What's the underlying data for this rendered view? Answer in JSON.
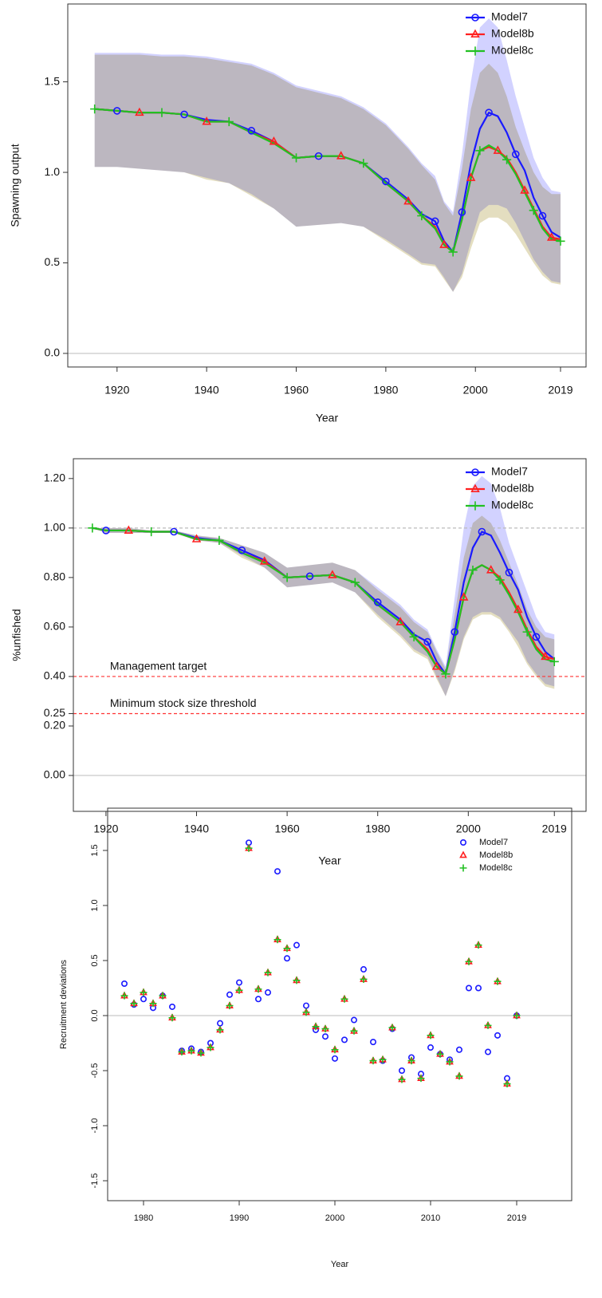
{
  "chart_data": [
    {
      "type": "line",
      "y_label": "Spawning output",
      "x_label": "Year",
      "xlim": [
        1909,
        2024.7
      ],
      "xticks": [
        1920,
        1940,
        1960,
        1980,
        2000,
        2019
      ],
      "ylim": [
        -0.075,
        1.93
      ],
      "yticks": [
        {
          "value": 0,
          "label": "0.0"
        },
        0.5,
        {
          "value": 1,
          "label": "1.0"
        },
        1.5
      ],
      "zero_line": true,
      "legend": "top-right",
      "x": [
        1915,
        1920,
        1925,
        1930,
        1935,
        1940,
        1945,
        1950,
        1955,
        1960,
        1965,
        1970,
        1975,
        1980,
        1985,
        1988,
        1991,
        1993,
        1995,
        1997,
        1999,
        2001,
        2003,
        2005,
        2007,
        2009,
        2011,
        2013,
        2015,
        2017,
        2019
      ],
      "series": [
        {
          "name": "Model7",
          "color": "#1a1aff",
          "marker": "circle",
          "band_color": "#b4b4ff",
          "values": [
            1.35,
            1.34,
            1.33,
            1.33,
            1.32,
            1.29,
            1.28,
            1.23,
            1.17,
            1.08,
            1.09,
            1.09,
            1.05,
            0.95,
            0.85,
            0.77,
            0.73,
            0.62,
            0.56,
            0.78,
            1.05,
            1.24,
            1.33,
            1.31,
            1.22,
            1.1,
            1.01,
            0.86,
            0.76,
            0.67,
            0.64
          ],
          "upper": [
            1.66,
            1.66,
            1.66,
            1.65,
            1.65,
            1.64,
            1.62,
            1.6,
            1.55,
            1.48,
            1.45,
            1.42,
            1.36,
            1.27,
            1.14,
            1.05,
            0.98,
            0.84,
            0.78,
            1.1,
            1.5,
            1.8,
            1.85,
            1.8,
            1.62,
            1.42,
            1.25,
            1.08,
            0.97,
            0.9,
            0.89
          ],
          "lower": [
            1.03,
            1.03,
            1.02,
            1.01,
            1.0,
            0.97,
            0.94,
            0.88,
            0.8,
            0.7,
            0.71,
            0.72,
            0.7,
            0.63,
            0.55,
            0.5,
            0.49,
            0.42,
            0.34,
            0.44,
            0.62,
            0.78,
            0.82,
            0.82,
            0.8,
            0.72,
            0.62,
            0.52,
            0.45,
            0.4,
            0.39
          ]
        },
        {
          "name": "Model8b",
          "color": "#ff2020",
          "marker": "triangle",
          "band_color": "#d2c896",
          "values": [
            1.35,
            1.34,
            1.33,
            1.33,
            1.32,
            1.28,
            1.28,
            1.22,
            1.17,
            1.08,
            1.09,
            1.09,
            1.05,
            0.94,
            0.84,
            0.76,
            0.7,
            0.6,
            0.56,
            0.74,
            0.97,
            1.12,
            1.14,
            1.12,
            1.08,
            1.0,
            0.9,
            0.8,
            0.7,
            0.64,
            0.63
          ],
          "upper": [
            1.65,
            1.65,
            1.65,
            1.64,
            1.64,
            1.63,
            1.61,
            1.59,
            1.54,
            1.47,
            1.44,
            1.41,
            1.35,
            1.26,
            1.13,
            1.04,
            0.96,
            0.83,
            0.76,
            1.02,
            1.35,
            1.55,
            1.6,
            1.55,
            1.42,
            1.25,
            1.12,
            1.0,
            0.92,
            0.88,
            0.88
          ],
          "lower": [
            1.03,
            1.03,
            1.02,
            1.01,
            1.0,
            0.96,
            0.94,
            0.87,
            0.8,
            0.7,
            0.71,
            0.72,
            0.7,
            0.62,
            0.54,
            0.49,
            0.48,
            0.41,
            0.34,
            0.42,
            0.58,
            0.72,
            0.75,
            0.75,
            0.72,
            0.66,
            0.58,
            0.5,
            0.43,
            0.39,
            0.38
          ]
        },
        {
          "name": "Model8c",
          "color": "#22c022",
          "marker": "plus",
          "values": [
            1.35,
            1.34,
            1.33,
            1.33,
            1.32,
            1.28,
            1.28,
            1.22,
            1.16,
            1.08,
            1.09,
            1.09,
            1.05,
            0.94,
            0.84,
            0.76,
            0.69,
            0.6,
            0.56,
            0.74,
            0.97,
            1.12,
            1.15,
            1.12,
            1.07,
            0.99,
            0.89,
            0.79,
            0.69,
            0.63,
            0.62
          ]
        }
      ]
    },
    {
      "type": "line",
      "y_label": "%unfished",
      "x_label": "Year",
      "xlim": [
        1912.8,
        2026
      ],
      "xticks": [
        1920,
        1940,
        1960,
        1980,
        2000,
        2019
      ],
      "ylim": [
        -0.145,
        1.28
      ],
      "yticks": [
        {
          "value": 0,
          "label": "0.00"
        },
        {
          "value": 0.2,
          "label": "0.20"
        },
        0.25,
        {
          "value": 0.4,
          "label": "0.40"
        },
        {
          "value": 0.6,
          "label": "0.60"
        },
        {
          "value": 0.8,
          "label": "0.80"
        },
        {
          "value": 1,
          "label": "1.00"
        },
        {
          "value": 1.2,
          "label": "1.20"
        }
      ],
      "zero_line": true,
      "legend": "top-right",
      "hlines": [
        {
          "value": 1,
          "color": "#bbbbbb"
        },
        {
          "value": 0.4,
          "label": "Management target",
          "color": "#ff3333"
        },
        {
          "value": 0.25,
          "label": "Minimum stock size threshold",
          "color": "#ff3333"
        }
      ],
      "x": [
        1917,
        1920,
        1925,
        1930,
        1935,
        1940,
        1945,
        1950,
        1955,
        1960,
        1965,
        1970,
        1975,
        1980,
        1985,
        1988,
        1991,
        1993,
        1995,
        1997,
        1999,
        2001,
        2003,
        2005,
        2007,
        2009,
        2011,
        2013,
        2015,
        2017,
        2019
      ],
      "series": [
        {
          "name": "Model7",
          "color": "#1a1aff",
          "marker": "circle",
          "band_color": "#b4b4ff",
          "values": [
            1.0,
            0.99,
            0.99,
            0.985,
            0.985,
            0.96,
            0.95,
            0.91,
            0.87,
            0.8,
            0.805,
            0.81,
            0.78,
            0.7,
            0.63,
            0.57,
            0.54,
            0.46,
            0.41,
            0.58,
            0.78,
            0.92,
            0.985,
            0.97,
            0.9,
            0.82,
            0.75,
            0.64,
            0.56,
            0.5,
            0.47
          ],
          "upper": [
            1.0,
            1.0,
            1.0,
            0.99,
            0.99,
            0.97,
            0.96,
            0.93,
            0.9,
            0.84,
            0.85,
            0.86,
            0.83,
            0.76,
            0.69,
            0.63,
            0.59,
            0.51,
            0.44,
            0.72,
            1.0,
            1.17,
            1.21,
            1.18,
            1.08,
            0.94,
            0.84,
            0.74,
            0.64,
            0.58,
            0.57
          ],
          "lower": [
            1.0,
            0.98,
            0.98,
            0.98,
            0.98,
            0.95,
            0.94,
            0.89,
            0.84,
            0.76,
            0.77,
            0.78,
            0.74,
            0.65,
            0.57,
            0.51,
            0.48,
            0.4,
            0.32,
            0.43,
            0.56,
            0.64,
            0.66,
            0.66,
            0.64,
            0.59,
            0.54,
            0.46,
            0.41,
            0.37,
            0.36
          ]
        },
        {
          "name": "Model8b",
          "color": "#ff2020",
          "marker": "triangle",
          "band_color": "#d2c896",
          "values": [
            1.0,
            0.99,
            0.99,
            0.985,
            0.985,
            0.955,
            0.95,
            0.9,
            0.865,
            0.8,
            0.805,
            0.81,
            0.78,
            0.69,
            0.62,
            0.56,
            0.51,
            0.44,
            0.41,
            0.55,
            0.72,
            0.83,
            0.85,
            0.83,
            0.8,
            0.74,
            0.67,
            0.59,
            0.52,
            0.48,
            0.47
          ],
          "upper": [
            1.0,
            1.0,
            1.0,
            0.99,
            0.99,
            0.97,
            0.96,
            0.93,
            0.9,
            0.84,
            0.85,
            0.86,
            0.83,
            0.75,
            0.68,
            0.62,
            0.58,
            0.5,
            0.43,
            0.65,
            0.88,
            1.02,
            1.05,
            1.02,
            0.95,
            0.86,
            0.77,
            0.67,
            0.6,
            0.56,
            0.55
          ],
          "lower": [
            1.0,
            0.98,
            0.98,
            0.98,
            0.98,
            0.95,
            0.94,
            0.88,
            0.84,
            0.76,
            0.77,
            0.78,
            0.74,
            0.64,
            0.56,
            0.5,
            0.47,
            0.39,
            0.32,
            0.42,
            0.55,
            0.63,
            0.65,
            0.65,
            0.63,
            0.58,
            0.52,
            0.45,
            0.4,
            0.36,
            0.35
          ]
        },
        {
          "name": "Model8c",
          "color": "#22c022",
          "marker": "plus",
          "values": [
            1.0,
            0.99,
            0.99,
            0.985,
            0.985,
            0.955,
            0.95,
            0.9,
            0.86,
            0.8,
            0.805,
            0.81,
            0.78,
            0.69,
            0.62,
            0.56,
            0.5,
            0.44,
            0.41,
            0.55,
            0.72,
            0.83,
            0.85,
            0.83,
            0.79,
            0.73,
            0.66,
            0.58,
            0.51,
            0.47,
            0.46
          ]
        }
      ]
    },
    {
      "type": "scatter",
      "y_label": "Recruitment deviations",
      "x_label": "Year",
      "xlim": [
        1976.25,
        2024.75
      ],
      "xticks": [
        1980,
        1990,
        2000,
        2010,
        2019
      ],
      "ylim": [
        -1.681,
        1.884
      ],
      "yticks": [
        -1.5,
        {
          "value": -1,
          "label": "-1.0"
        },
        -0.5,
        {
          "value": 0,
          "label": "0.0"
        },
        0.5,
        {
          "value": 1,
          "label": "1.0"
        },
        1.5
      ],
      "zero_line": true,
      "legend": "top-right",
      "x": [
        1978,
        1979,
        1980,
        1981,
        1982,
        1983,
        1984,
        1985,
        1986,
        1987,
        1988,
        1989,
        1990,
        1991,
        1992,
        1993,
        1994,
        1995,
        1996,
        1997,
        1998,
        1999,
        2000,
        2001,
        2002,
        2003,
        2004,
        2005,
        2006,
        2007,
        2008,
        2009,
        2010,
        2011,
        2012,
        2013,
        2014,
        2015,
        2016,
        2017,
        2018,
        2019
      ],
      "series": [
        {
          "name": "Model7",
          "color": "#1a1aff",
          "marker": "circle",
          "values": [
            0.29,
            0.1,
            0.15,
            0.07,
            0.18,
            0.08,
            -0.32,
            -0.3,
            -0.33,
            -0.25,
            -0.07,
            0.19,
            0.3,
            1.57,
            0.15,
            0.21,
            1.31,
            0.52,
            0.64,
            0.09,
            -0.13,
            -0.19,
            -0.39,
            -0.22,
            -0.04,
            0.42,
            -0.24,
            -0.41,
            -0.12,
            -0.5,
            -0.38,
            -0.53,
            -0.29,
            -0.35,
            -0.4,
            -0.31,
            0.25,
            0.25,
            -0.33,
            -0.18,
            -0.57,
            0.0
          ]
        },
        {
          "name": "Model8b",
          "color": "#ff2020",
          "marker": "triangle",
          "values": [
            0.18,
            0.11,
            0.21,
            0.11,
            0.18,
            -0.02,
            -0.33,
            -0.32,
            -0.34,
            -0.29,
            -0.13,
            0.09,
            0.23,
            1.52,
            0.24,
            0.39,
            0.69,
            0.61,
            0.32,
            0.03,
            -0.1,
            -0.12,
            -0.31,
            0.15,
            -0.14,
            0.33,
            -0.41,
            -0.4,
            -0.11,
            -0.58,
            -0.41,
            -0.57,
            -0.18,
            -0.35,
            -0.42,
            -0.55,
            0.49,
            0.64,
            -0.09,
            0.31,
            -0.62,
            0.0
          ]
        },
        {
          "name": "Model8c",
          "color": "#22c022",
          "marker": "plus",
          "values": [
            0.18,
            0.11,
            0.21,
            0.11,
            0.18,
            -0.02,
            -0.33,
            -0.32,
            -0.34,
            -0.29,
            -0.13,
            0.09,
            0.23,
            1.52,
            0.24,
            0.39,
            0.69,
            0.61,
            0.32,
            0.03,
            -0.1,
            -0.12,
            -0.31,
            0.15,
            -0.14,
            0.33,
            -0.41,
            -0.4,
            -0.11,
            -0.58,
            -0.41,
            -0.57,
            -0.18,
            -0.35,
            -0.42,
            -0.55,
            0.49,
            0.64,
            -0.09,
            0.31,
            -0.62,
            0.0
          ]
        }
      ]
    }
  ]
}
